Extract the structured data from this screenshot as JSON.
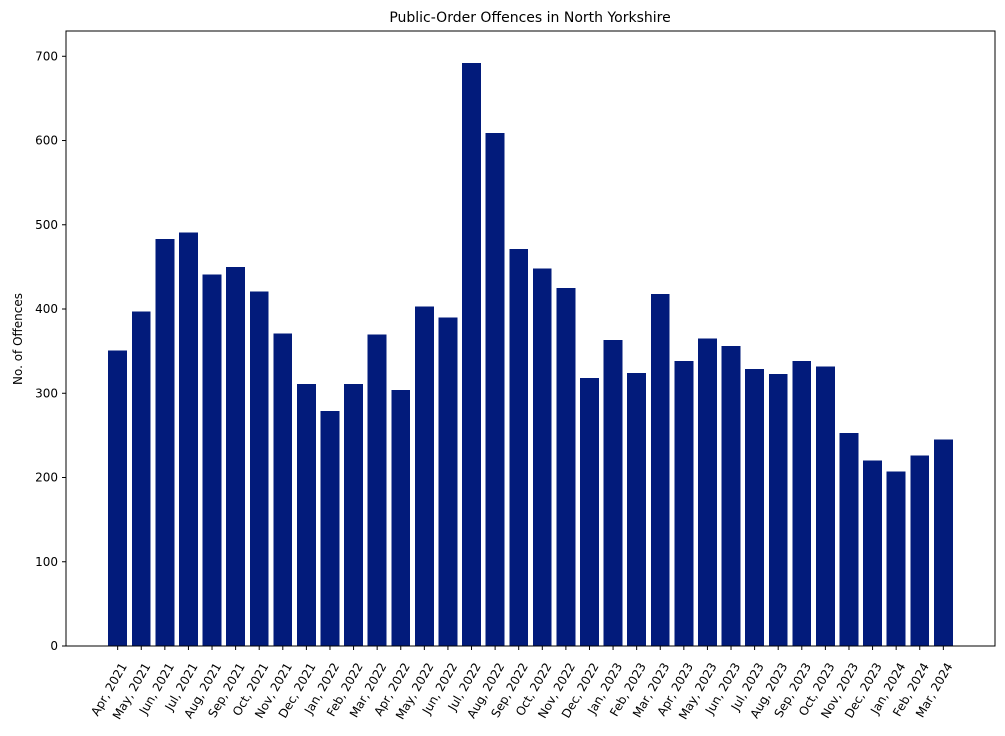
{
  "chart_data": {
    "type": "bar",
    "title": "Public-Order Offences in North Yorkshire",
    "xlabel": "",
    "ylabel": "No. of Offences",
    "ylim": [
      0,
      730
    ],
    "yticks": [
      0,
      100,
      200,
      300,
      400,
      500,
      600,
      700
    ],
    "grid": false,
    "bar_color": "#021b7b",
    "categories": [
      "Apr, 2021",
      "May, 2021",
      "Jun, 2021",
      "Jul, 2021",
      "Aug, 2021",
      "Sep, 2021",
      "Oct, 2021",
      "Nov, 2021",
      "Dec, 2021",
      "Jan, 2022",
      "Feb, 2022",
      "Mar, 2022",
      "Apr, 2022",
      "May, 2022",
      "Jun, 2022",
      "Jul, 2022",
      "Aug, 2022",
      "Sep, 2022",
      "Oct, 2022",
      "Nov, 2022",
      "Dec, 2022",
      "Jan, 2023",
      "Feb, 2023",
      "Mar, 2023",
      "Apr, 2023",
      "May, 2023",
      "Jun, 2023",
      "Jul, 2023",
      "Aug, 2023",
      "Sep, 2023",
      "Oct, 2023",
      "Nov, 2023",
      "Dec, 2023",
      "Jan, 2024",
      "Feb, 2024",
      "Mar, 2024"
    ],
    "values": [
      351,
      397,
      483,
      491,
      441,
      450,
      421,
      371,
      311,
      279,
      311,
      370,
      304,
      403,
      390,
      692,
      609,
      471,
      448,
      425,
      318,
      363,
      324,
      418,
      338,
      365,
      356,
      329,
      323,
      338,
      332,
      253,
      220,
      207,
      226,
      245
    ]
  }
}
